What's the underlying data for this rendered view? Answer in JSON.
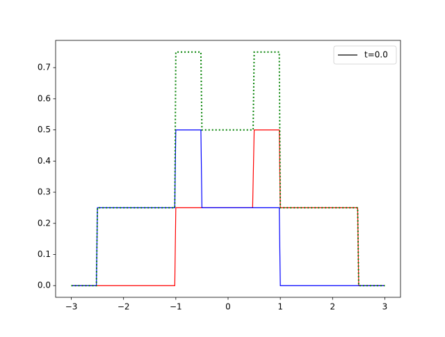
{
  "chart_data": {
    "type": "line",
    "xlim": [
      -3.3,
      3.3
    ],
    "ylim": [
      -0.0375,
      0.7875
    ],
    "xticks": [
      {
        "value": -3,
        "label": "−3"
      },
      {
        "value": -2,
        "label": "−2"
      },
      {
        "value": -1,
        "label": "−1"
      },
      0,
      1,
      2,
      3
    ],
    "yticks": [
      {
        "value": 0,
        "label": "0.0"
      },
      0.1,
      0.2,
      0.3,
      0.4,
      0.5,
      0.6,
      0.7
    ],
    "legend_position": "upper right",
    "series": [
      {
        "name": "t=0.0",
        "color": "#000000",
        "style": "solid",
        "x": [],
        "values": []
      },
      {
        "color": "#ff0000",
        "style": "solid",
        "x": [
          -3,
          -1.02,
          -1,
          0.47,
          0.5,
          0.98,
          1,
          2.48,
          2.5,
          3
        ],
        "values": [
          0,
          0,
          0.25,
          0.25,
          0.5,
          0.5,
          0.25,
          0.25,
          0,
          0
        ]
      },
      {
        "color": "#0000ff",
        "style": "solid",
        "x": [
          -3,
          -2.52,
          -2.5,
          -1.02,
          -1,
          -0.52,
          -0.5,
          0.98,
          1,
          3
        ],
        "values": [
          0,
          0,
          0.25,
          0.25,
          0.5,
          0.5,
          0.25,
          0.25,
          0,
          0
        ]
      },
      {
        "color": "#008000",
        "style": "dotted",
        "x": [
          -3,
          -2.52,
          -2.5,
          -1.02,
          -1,
          -0.52,
          -0.5,
          0.48,
          0.5,
          0.98,
          1,
          2.48,
          2.5,
          3
        ],
        "values": [
          0,
          0,
          0.25,
          0.25,
          0.75,
          0.75,
          0.5,
          0.5,
          0.75,
          0.75,
          0.25,
          0.25,
          0,
          0
        ]
      }
    ]
  }
}
